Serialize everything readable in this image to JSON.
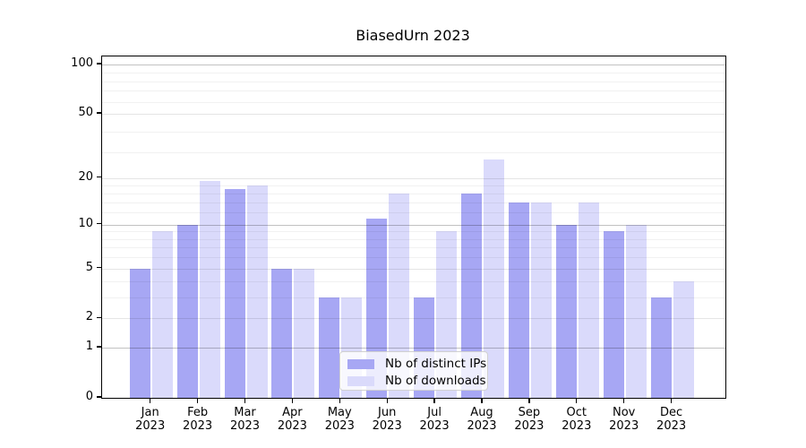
{
  "chart_data": {
    "type": "bar",
    "title": "BiasedUrn 2023",
    "scale": "log1p",
    "categories": [
      "Jan",
      "Feb",
      "Mar",
      "Apr",
      "May",
      "Jun",
      "Jul",
      "Aug",
      "Sep",
      "Oct",
      "Nov",
      "Dec"
    ],
    "year": "2023",
    "series": [
      {
        "name": "Nb of distinct IPs",
        "color": "#a7a7f4",
        "values": [
          5,
          10,
          17,
          5,
          3,
          11,
          3,
          16,
          14,
          10,
          9,
          3
        ]
      },
      {
        "name": "Nb of downloads",
        "color": "#dadafb",
        "values": [
          9,
          19,
          18,
          5,
          3,
          16,
          9,
          26,
          14,
          14,
          10,
          4
        ]
      }
    ],
    "xlabel": "",
    "ylabel": "",
    "ylim": [
      0,
      112
    ],
    "yticks": [
      100,
      50,
      20,
      10,
      5,
      2,
      1,
      0
    ],
    "gridlines": {
      "major": [
        1,
        10,
        100
      ],
      "mid": [
        2,
        5,
        20,
        50
      ],
      "minor": [
        3,
        4,
        6,
        7,
        8,
        9,
        12,
        14,
        16,
        18,
        29,
        39,
        59,
        69,
        79,
        89
      ]
    },
    "legend_position": "lower center"
  },
  "legend": {
    "items": [
      {
        "label": "Nb of distinct IPs",
        "color": "#a7a7f4"
      },
      {
        "label": "Nb of downloads",
        "color": "#dadafb"
      }
    ]
  }
}
